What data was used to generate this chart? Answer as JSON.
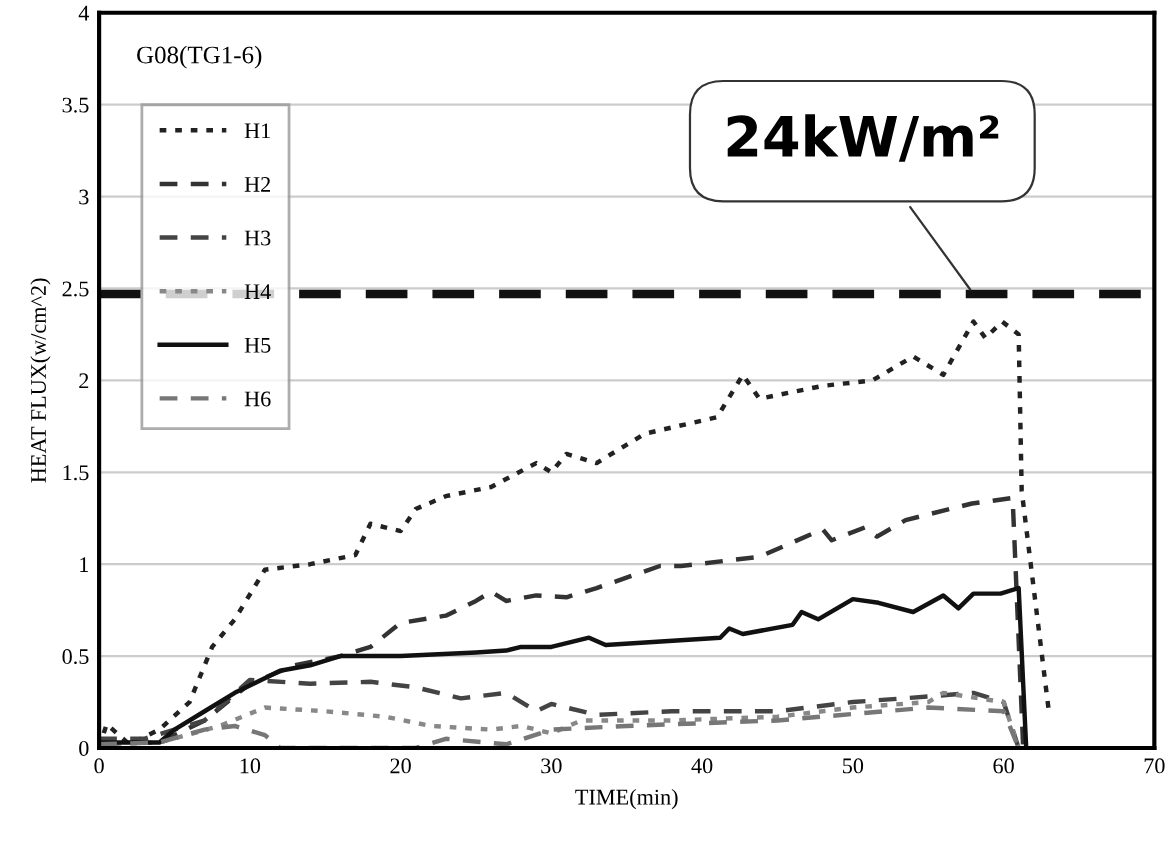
{
  "chart_data": {
    "type": "line",
    "title": "G08(TG1-6)",
    "xlabel": "TIME(min)",
    "ylabel": "HEAT FLUX(w/cm^2)",
    "xlim": [
      0,
      70
    ],
    "xticks": [
      0,
      10,
      20,
      30,
      40,
      50,
      60,
      70
    ],
    "ylim": [
      0,
      4
    ],
    "yticks": [
      0,
      0.5,
      1,
      1.5,
      2,
      2.5,
      3,
      3.5,
      4
    ],
    "grid": "y",
    "legend": "top left",
    "ref_lines": [
      {
        "axis": "y",
        "value": 2.47,
        "color": "#111111",
        "line_style": "dashed"
      }
    ],
    "annotations": [
      {
        "text": "24kW/m²",
        "x": 58,
        "y": 2.47
      }
    ],
    "series": [
      {
        "name": "H1",
        "color": "#222222",
        "line_style": "dotted",
        "x": [
          0,
          0.5,
          2,
          4,
          6,
          7.5,
          9,
          11,
          14,
          17,
          18,
          20,
          21,
          23,
          26,
          29,
          30,
          31,
          33,
          36.2,
          41,
          42.7,
          43.8,
          48,
          51.3,
          54,
          56,
          58,
          58.8,
          59.9,
          61,
          61.2,
          63
        ],
        "values": [
          0,
          0.13,
          0.02,
          0.1,
          0.25,
          0.55,
          0.7,
          0.97,
          1.0,
          1.05,
          1.22,
          1.18,
          1.3,
          1.37,
          1.42,
          1.55,
          1.5,
          1.6,
          1.55,
          1.71,
          1.8,
          2.03,
          1.9,
          1.97,
          2.0,
          2.13,
          2.03,
          2.32,
          2.23,
          2.32,
          2.25,
          1.4,
          0.2
        ]
      },
      {
        "name": "H2",
        "color": "#333333",
        "line_style": "dashed",
        "x": [
          0,
          4,
          7,
          10,
          13,
          16,
          18,
          20,
          23,
          25,
          26,
          27,
          29,
          31,
          33,
          37.2,
          38.6,
          43.8,
          48,
          48.6,
          50.8,
          51.6,
          53.5,
          57.9,
          60.6,
          61.3
        ],
        "values": [
          0.03,
          0.03,
          0.15,
          0.35,
          0.45,
          0.5,
          0.55,
          0.68,
          0.72,
          0.8,
          0.85,
          0.8,
          0.83,
          0.82,
          0.87,
          0.99,
          0.99,
          1.04,
          1.19,
          1.13,
          1.2,
          1.15,
          1.24,
          1.33,
          1.36,
          0
        ]
      },
      {
        "name": "H3",
        "color": "#444444",
        "line_style": "dashed",
        "x": [
          0,
          3,
          7,
          10,
          14,
          18,
          21,
          24,
          27,
          29,
          30,
          33,
          38,
          45,
          50,
          55,
          58,
          60,
          61
        ],
        "values": [
          0.05,
          0.05,
          0.15,
          0.37,
          0.35,
          0.36,
          0.33,
          0.27,
          0.3,
          0.2,
          0.24,
          0.18,
          0.2,
          0.2,
          0.25,
          0.28,
          0.3,
          0.25,
          0
        ]
      },
      {
        "name": "H4",
        "color": "#888888",
        "line_style": "dotted",
        "x": [
          0,
          4,
          8,
          11,
          15,
          19,
          22,
          26,
          28,
          30,
          32,
          38,
          45,
          50,
          55,
          56,
          60,
          61
        ],
        "values": [
          0.02,
          0.03,
          0.12,
          0.22,
          0.2,
          0.17,
          0.12,
          0.1,
          0.12,
          0.08,
          0.15,
          0.15,
          0.17,
          0.22,
          0.25,
          0.3,
          0.25,
          0
        ]
      },
      {
        "name": "H5",
        "color": "#111111",
        "line_style": "solid",
        "x": [
          0,
          4,
          5,
          7,
          9,
          12,
          14,
          16,
          20,
          25,
          27,
          28,
          30,
          32.5,
          33.6,
          41.2,
          41.8,
          42.7,
          46,
          46.6,
          47.7,
          50,
          51.7,
          54,
          56,
          57,
          58,
          59.8,
          61,
          61.5
        ],
        "values": [
          0.03,
          0.03,
          0.1,
          0.2,
          0.3,
          0.42,
          0.45,
          0.5,
          0.5,
          0.52,
          0.53,
          0.55,
          0.55,
          0.6,
          0.56,
          0.6,
          0.65,
          0.62,
          0.67,
          0.74,
          0.7,
          0.81,
          0.79,
          0.74,
          0.83,
          0.76,
          0.84,
          0.84,
          0.87,
          0
        ]
      },
      {
        "name": "H6",
        "color": "#777777",
        "line_style": "dashed",
        "x": [
          0,
          4,
          7,
          9,
          11,
          12,
          21,
          23,
          27,
          30,
          35,
          45,
          55,
          60,
          61
        ],
        "values": [
          0.02,
          0.03,
          0.1,
          0.12,
          0.07,
          0,
          0,
          0.05,
          0.02,
          0.1,
          0.12,
          0.15,
          0.22,
          0.2,
          0
        ]
      }
    ]
  }
}
